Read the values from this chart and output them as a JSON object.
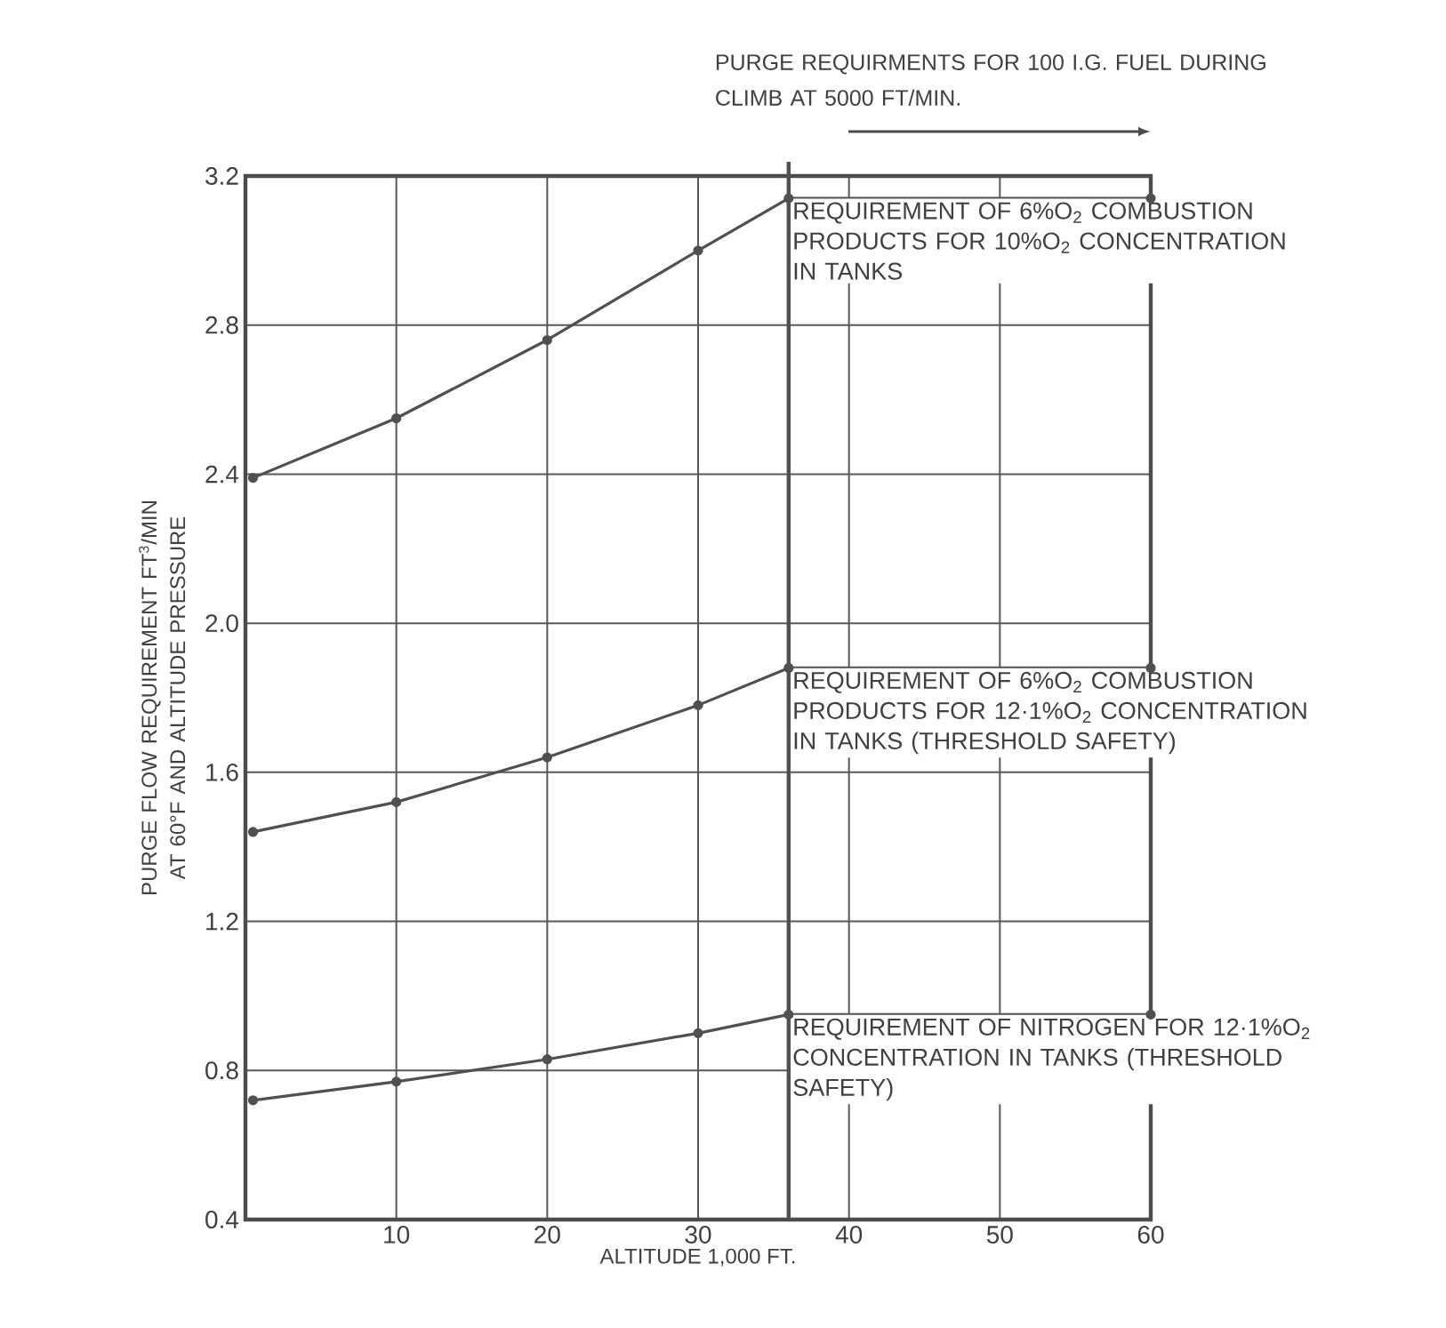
{
  "chart_data": {
    "type": "line",
    "xlabel": "ALTITUDE 1,000 FT.",
    "ylabel": "PURGE FLOW REQUIREMENT FT$^{3}$/MIN AT 60°F AND ALTITUDE PRESSURE",
    "annotations": [
      "PURGE REQUIRMENTS FOR 100 I.G. FUEL DURING CLIMB AT 5000 FT/MIN."
    ],
    "xlim": [
      0,
      60
    ],
    "ylim": [
      0.4,
      3.2
    ],
    "xticks": [
      10,
      20,
      30,
      40,
      50,
      60
    ],
    "yticks": [
      0.4,
      0.8,
      1.2,
      1.6,
      {
        "value": 2.0,
        "label": "2.0"
      },
      2.4,
      2.8,
      3.2
    ],
    "grid": true,
    "marker": "circle",
    "line_style": "solid",
    "ref_lines": [
      {
        "axis": "x",
        "value": 36,
        "color": "#505050"
      }
    ],
    "series": [
      {
        "name": "REQUIREMENT OF 6%O$_{2}$ COMBUSTION PRODUCTS FOR 10%O$_{2}$ CONCENTRATION IN TANKS",
        "color": "#505050",
        "x": [
          0.5,
          10,
          20,
          30,
          36,
          60
        ],
        "values": [
          2.39,
          2.55,
          2.76,
          3.0,
          3.14,
          3.14
        ]
      },
      {
        "name": "REQUIREMENT OF 6%O$_{2}$ COMBUSTION PRODUCTS FOR 12·1%O$_{2}$ CONCENTRATION IN TANKS (THRESHOLD SAFETY)",
        "color": "#505050",
        "x": [
          0.5,
          10,
          20,
          30,
          36,
          60
        ],
        "values": [
          1.44,
          1.52,
          1.64,
          1.78,
          1.88,
          1.88
        ]
      },
      {
        "name": "REQUIREMENT OF NITROGEN FOR 12·1%O$_{2}$ CONCENTRATION IN TANKS (THRESHOLD SAFETY)",
        "color": "#505050",
        "x": [
          0.5,
          10,
          20,
          30,
          36,
          60
        ],
        "values": [
          0.72,
          0.77,
          0.83,
          0.9,
          0.95,
          0.95
        ]
      }
    ]
  }
}
